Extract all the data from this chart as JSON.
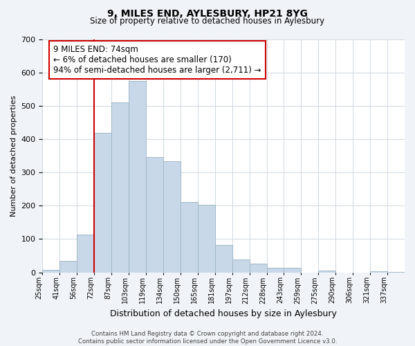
{
  "title": "9, MILES END, AYLESBURY, HP21 8YG",
  "subtitle": "Size of property relative to detached houses in Aylesbury",
  "xlabel": "Distribution of detached houses by size in Aylesbury",
  "ylabel": "Number of detached properties",
  "bin_labels": [
    "25sqm",
    "41sqm",
    "56sqm",
    "72sqm",
    "87sqm",
    "103sqm",
    "119sqm",
    "134sqm",
    "150sqm",
    "165sqm",
    "181sqm",
    "197sqm",
    "212sqm",
    "228sqm",
    "243sqm",
    "259sqm",
    "275sqm",
    "290sqm",
    "306sqm",
    "321sqm",
    "337sqm"
  ],
  "bar_values": [
    8,
    35,
    113,
    418,
    510,
    575,
    345,
    333,
    210,
    203,
    83,
    38,
    27,
    13,
    13,
    0,
    5,
    0,
    0,
    3,
    2
  ],
  "bar_color": "#c8d8e8",
  "bar_edge_color": "#a0b8c8",
  "vline_x": 3,
  "vline_color": "#cc0000",
  "annotation_text": "9 MILES END: 74sqm\n← 6% of detached houses are smaller (170)\n94% of semi-detached houses are larger (2,711) →",
  "annotation_box_color": "#ffffff",
  "annotation_box_edge": "#cc0000",
  "ylim": [
    0,
    700
  ],
  "yticks": [
    0,
    100,
    200,
    300,
    400,
    500,
    600,
    700
  ],
  "footer_text": "Contains HM Land Registry data © Crown copyright and database right 2024.\nContains public sector information licensed under the Open Government Licence v3.0.",
  "background_color": "#f0f4f8",
  "plot_bg_color": "#ffffff"
}
